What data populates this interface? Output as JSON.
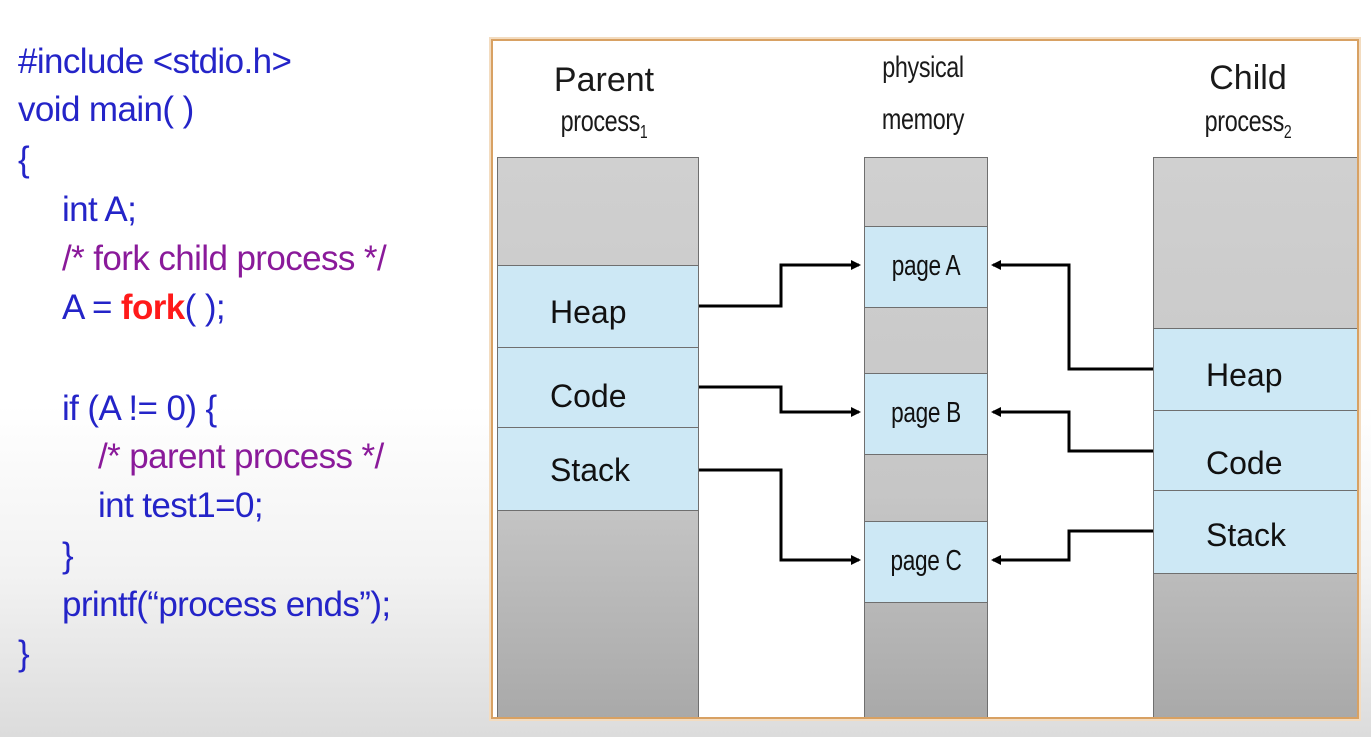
{
  "code": {
    "line1": "#include <stdio.h>",
    "line2": "void main( )",
    "line3": "{",
    "line4": "int A;",
    "line5": "/* fork child process */",
    "line6_pre": "A = ",
    "line6_fork": "fork",
    "line6_post": "( );",
    "line7": "if (A != 0) {",
    "line8": "/* parent process */",
    "line9": "int test1=0;",
    "line10": "}",
    "line11": "printf(“process ends”);",
    "line12": "}"
  },
  "diagram": {
    "parent": {
      "title": "Parent",
      "sub": "process",
      "sub_index": "1",
      "segments": {
        "heap": "Heap",
        "code": "Code",
        "stack": "Stack"
      }
    },
    "physical": {
      "title_line1": "physical",
      "title_line2": "memory",
      "pages": {
        "a": "page A",
        "b": "page B",
        "c": "page C"
      }
    },
    "child": {
      "title": "Child",
      "sub": "process",
      "sub_index": "2",
      "segments": {
        "heap": "Heap",
        "code": "Code",
        "stack": "Stack"
      }
    }
  },
  "colors": {
    "keyword": "#2424c8",
    "comment": "#8a1a9a",
    "fork": "#ff1a1a",
    "segment": "#cde8f5",
    "frame": "#d8a163"
  }
}
